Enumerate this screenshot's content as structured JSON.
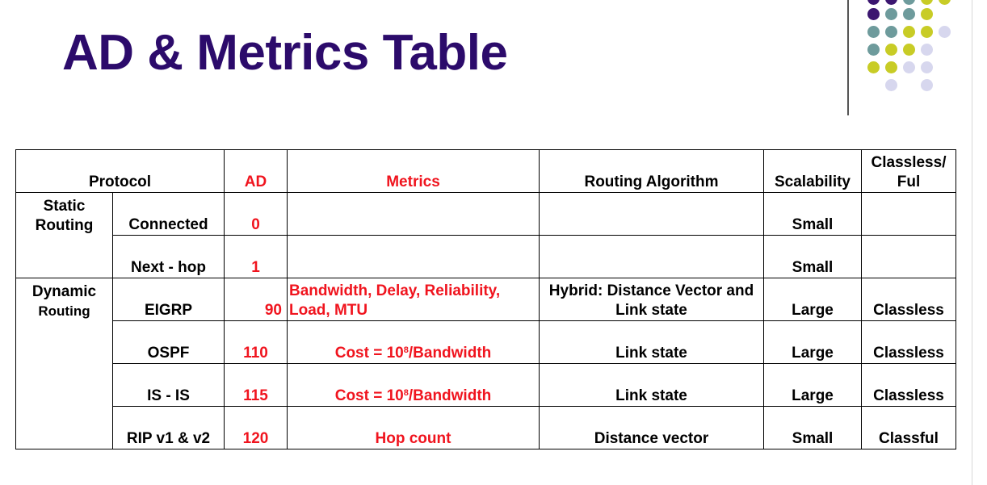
{
  "title": "AD & Metrics Table",
  "colors": {
    "title": "#2c0b6b",
    "red_text": "#f0141e",
    "dot_purple": "#3b1670",
    "dot_teal": "#6e9b9c",
    "dot_yellow": "#c8cc26",
    "dot_lavender": "#d7d7ee"
  },
  "table": {
    "headers": {
      "protocol": "Protocol",
      "ad": "AD",
      "metrics": "Metrics",
      "routing_algorithm": "Routing Algorithm",
      "scalability": "Scalability",
      "classless_line1": "Classless/",
      "classless_line2": "Ful"
    },
    "groups": {
      "static_line1": "Static",
      "static_line2": "Routing",
      "dynamic_line1": "Dynamic",
      "dynamic_line2": "Routing"
    },
    "rows": [
      {
        "protocol": "Connected",
        "ad": "0",
        "metrics": "",
        "algorithm": "",
        "scalability": "Small",
        "classful": ""
      },
      {
        "protocol": "Next - hop",
        "ad": "1",
        "metrics": "",
        "algorithm": "",
        "scalability": "Small",
        "classful": ""
      },
      {
        "protocol": "EIGRP",
        "ad": "90",
        "metrics_line1": "Bandwidth, Delay, Reliability,",
        "metrics_line2": "Load, MTU",
        "algorithm_line1": "Hybrid: Distance Vector and",
        "algorithm_line2": "Link state",
        "scalability": "Large",
        "classful": "Classless"
      },
      {
        "protocol": "OSPF",
        "ad": "110",
        "metrics_prefix": "Cost = 10",
        "metrics_sup": "8",
        "metrics_suffix": "/Bandwidth",
        "algorithm": "Link state",
        "scalability": "Large",
        "classful": "Classless"
      },
      {
        "protocol": "IS - IS",
        "ad": "115",
        "metrics_prefix": "Cost = 10",
        "metrics_sup": "8",
        "metrics_suffix": "/Bandwidth",
        "algorithm": "Link state",
        "scalability": "Large",
        "classful": "Classless"
      },
      {
        "protocol": "RIP v1 & v2",
        "ad": "120",
        "metrics": "Hop count",
        "algorithm": "Distance vector",
        "scalability": "Small",
        "classful": "Classful"
      }
    ]
  }
}
